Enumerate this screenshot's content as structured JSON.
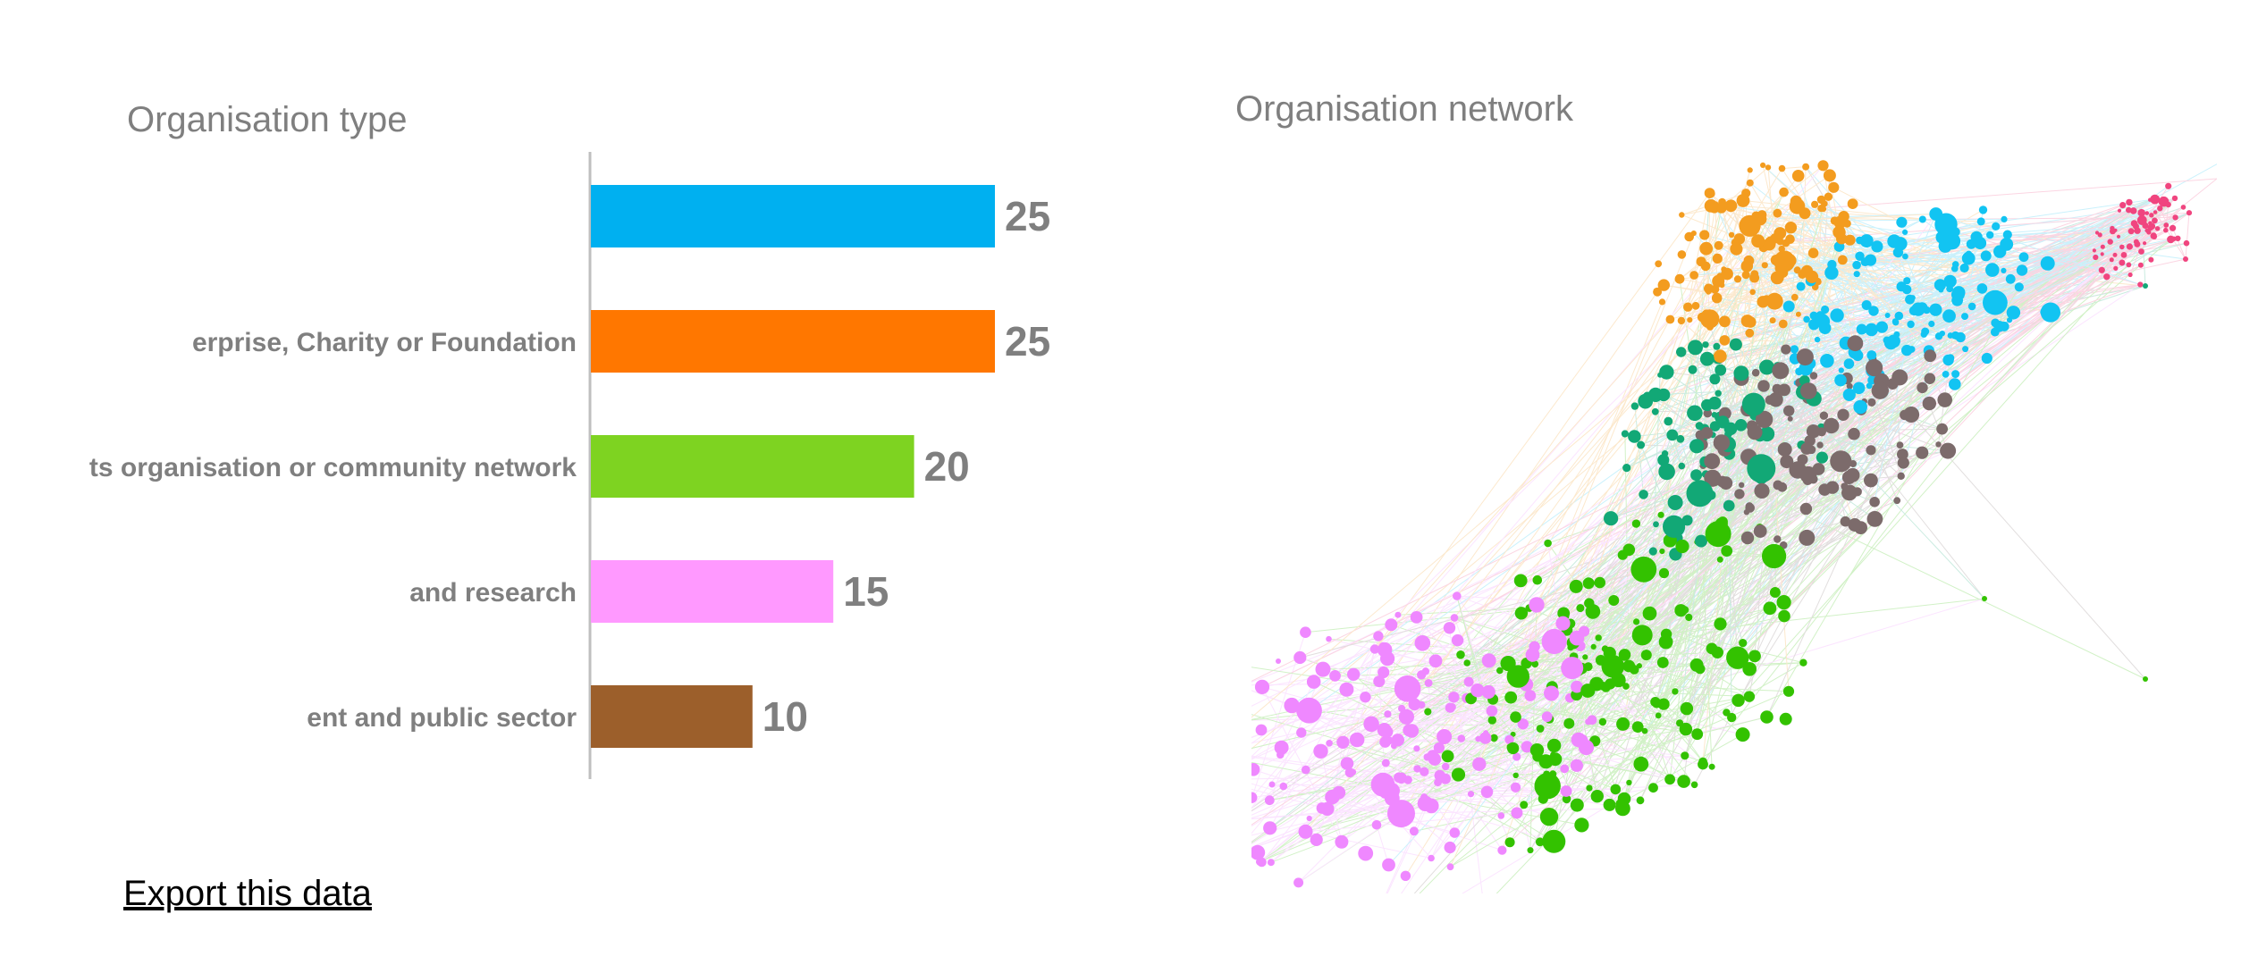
{
  "chart_data": [
    {
      "type": "bar",
      "orientation": "horizontal",
      "title": "Organisation type",
      "categories": [
        "",
        "erprise, Charity or Foundation",
        "ts organisation or community network",
        "and research",
        "ent and public sector"
      ],
      "values": [
        25,
        25,
        20,
        15,
        10
      ],
      "colors": [
        "#00b0f0",
        "#ff7700",
        "#7ed321",
        "#ff99ff",
        "#9c5f2b"
      ],
      "xlim": [
        0,
        25
      ],
      "grid": false,
      "legend": "none"
    },
    {
      "type": "network",
      "title": "Organisation network",
      "clusters": [
        {
          "color": "#f39c1f"
        },
        {
          "color": "#12c4f2"
        },
        {
          "color": "#f0457f"
        },
        {
          "color": "#12a876"
        },
        {
          "color": "#7c6b6b"
        },
        {
          "color": "#33c200"
        },
        {
          "color": "#ef88ff"
        }
      ]
    }
  ],
  "export_label": "Export this data"
}
